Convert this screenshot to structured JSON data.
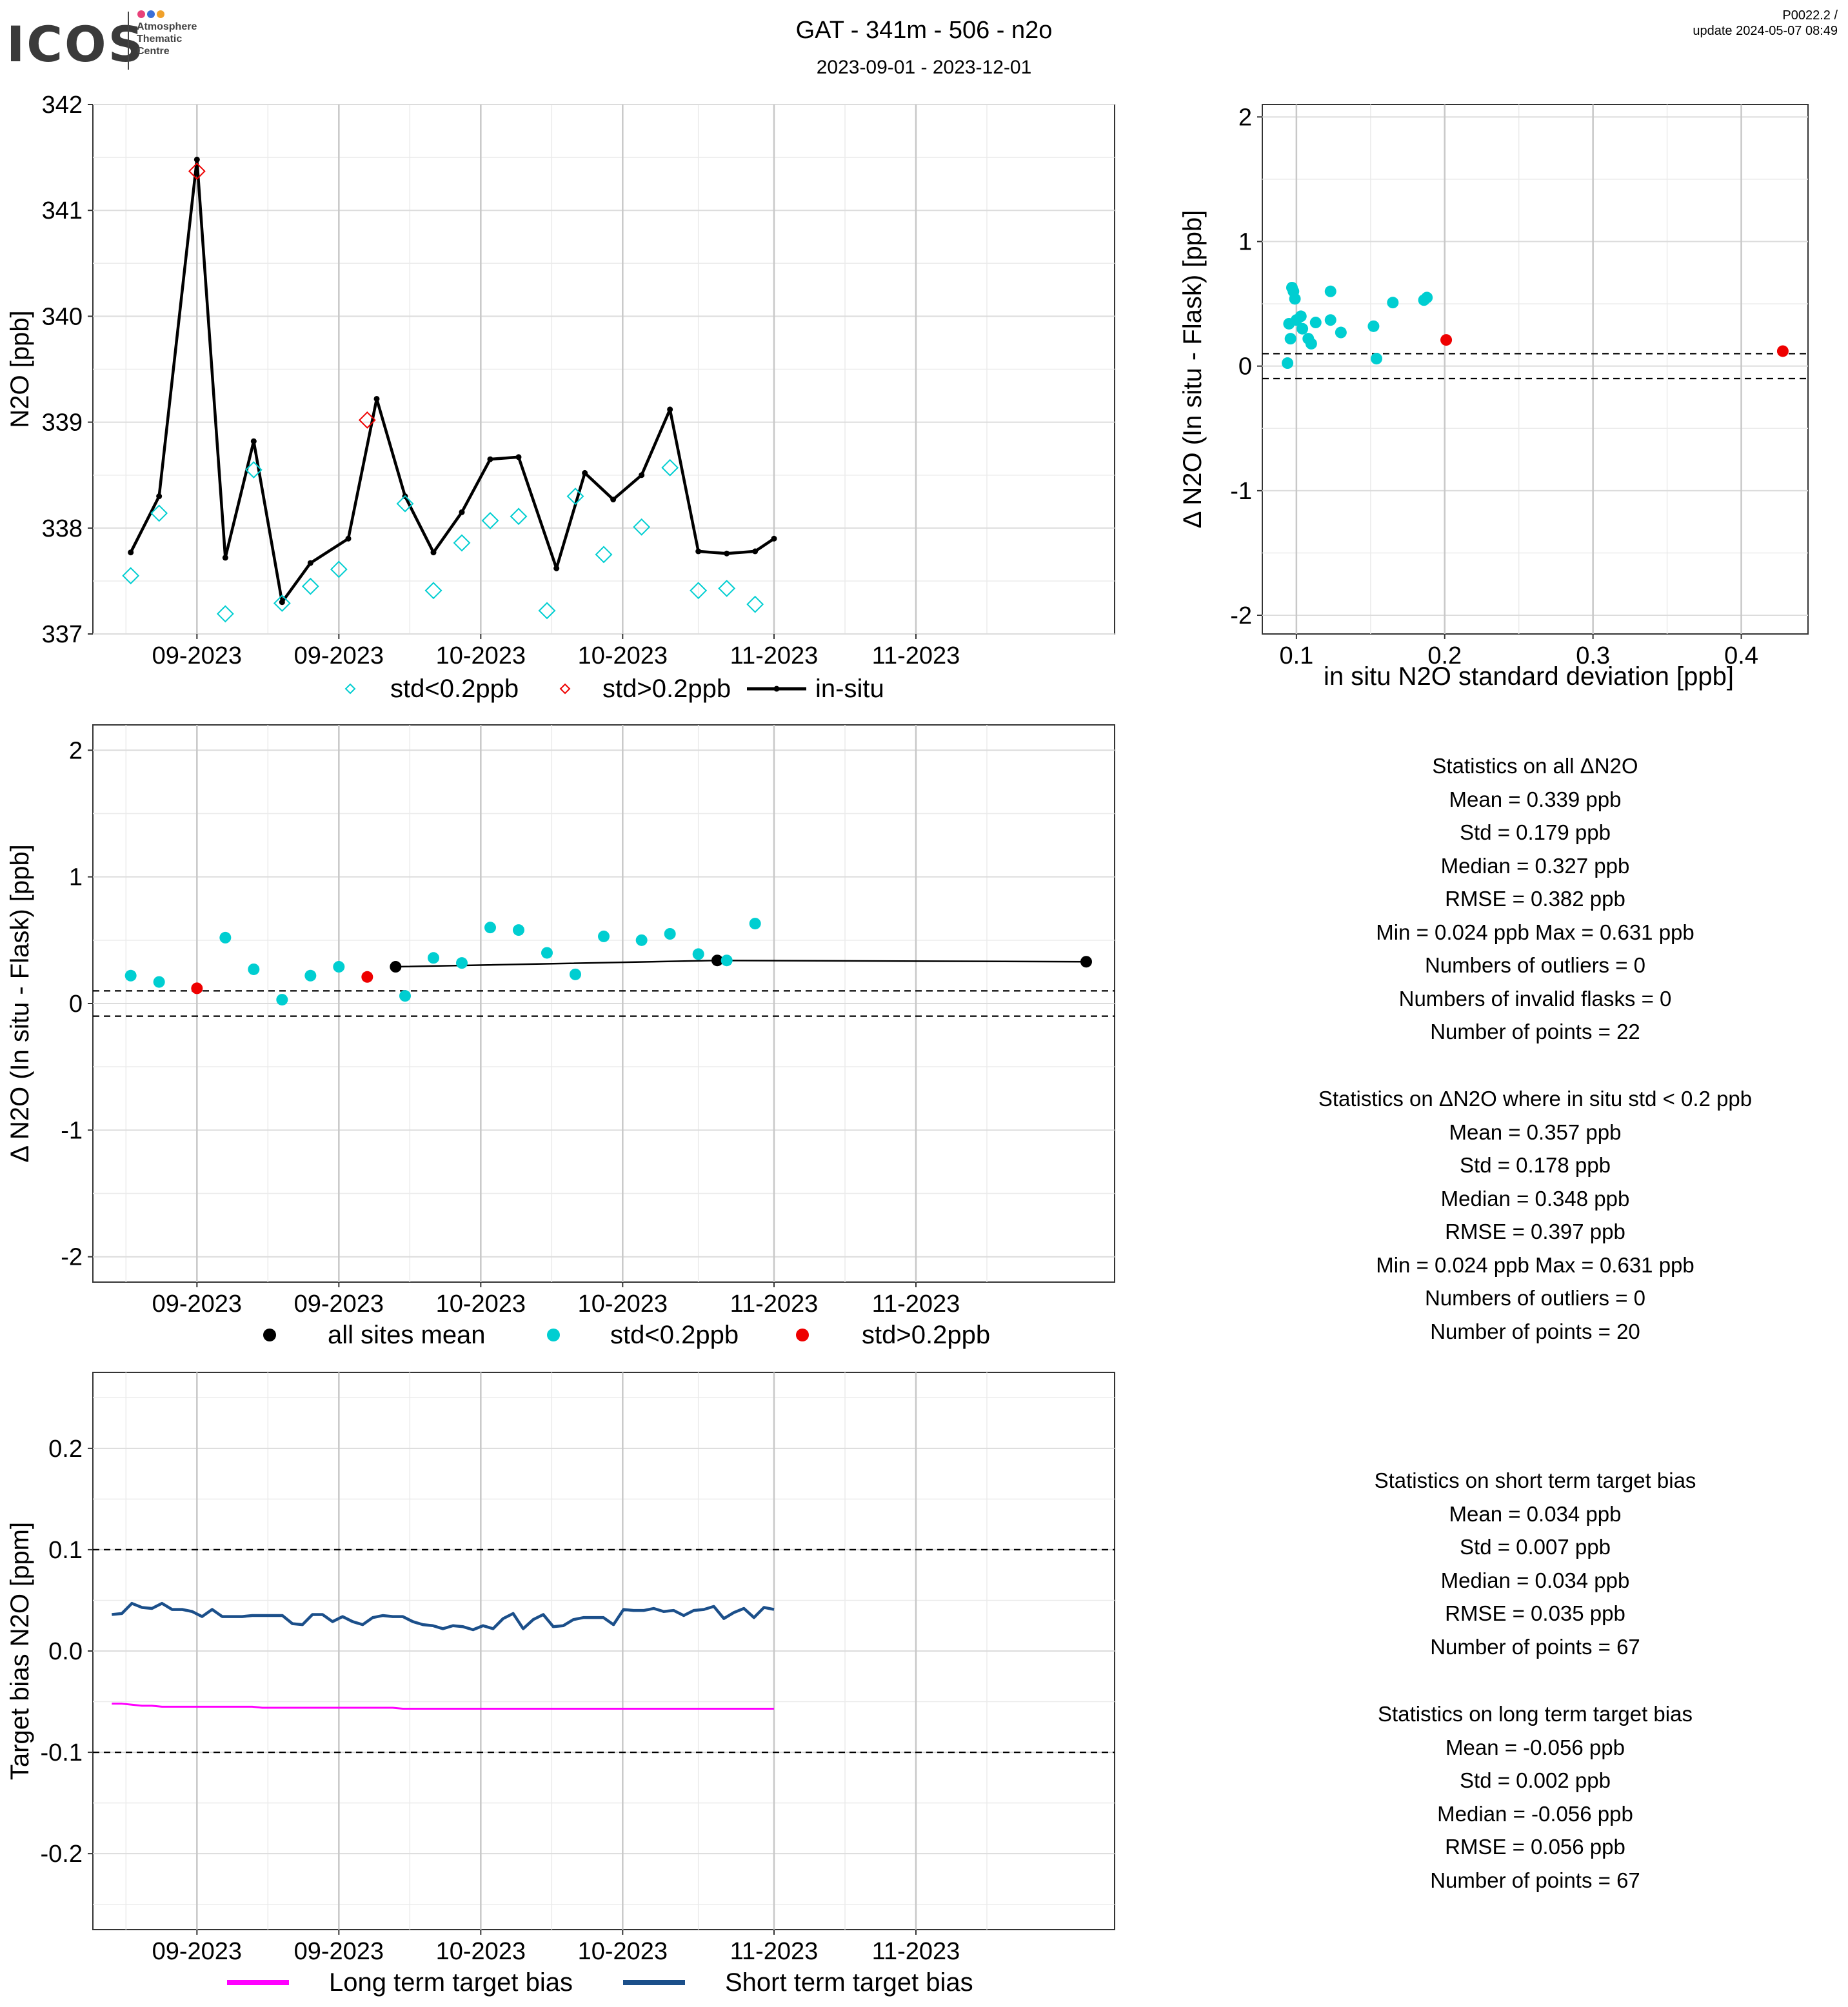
{
  "header": {
    "logo_text": "ICOS",
    "logo_sub": [
      "Atmosphere",
      "Thematic",
      "Centre"
    ],
    "logo_dot_colors": [
      "#e8417a",
      "#3a6fd8",
      "#f0a12b"
    ],
    "title": "GAT - 341m - 506 - n2o",
    "date_range": "2023-09-01 - 2023-12-01",
    "version": "P0022.2 /",
    "update": "update  2024-05-07 08:49"
  },
  "colors": {
    "cyan": "#00CED1",
    "red": "#EE0000",
    "magenta": "#FF00FF",
    "navy": "#1B4F8A",
    "black": "#000000"
  },
  "chart_data": [
    {
      "id": "timeseries",
      "type": "line",
      "ylabel": "N2O [ppb]",
      "ylim": [
        337,
        342
      ],
      "xlim": [
        "2023-08-21",
        "2023-12-07"
      ],
      "x_tick_dates": [
        "2023-09-01",
        "2023-09-16",
        "2023-10-01",
        "2023-10-16",
        "2023-11-01",
        "2023-11-16"
      ],
      "x_tick_labels": [
        "09-2023",
        "09-2023",
        "10-2023",
        "10-2023",
        "11-2023",
        "11-2023"
      ],
      "y_ticks": [
        337,
        338,
        339,
        340,
        341,
        342
      ],
      "legend": [
        {
          "label": "std<0.2ppb",
          "symbol": "diamond",
          "color": "#00CED1"
        },
        {
          "label": "std>0.2ppb",
          "symbol": "diamond",
          "color": "#EE0000"
        },
        {
          "label": "in-situ",
          "symbol": "line",
          "color": "#000000"
        }
      ],
      "series": [
        {
          "name": "in-situ",
          "x": [
            "2023-08-25",
            "2023-08-28",
            "2023-09-01",
            "2023-09-04",
            "2023-09-07",
            "2023-09-10",
            "2023-09-13",
            "2023-09-17",
            "2023-09-20",
            "2023-09-23",
            "2023-09-26",
            "2023-09-29",
            "2023-10-02",
            "2023-10-05",
            "2023-10-09",
            "2023-10-12",
            "2023-10-15",
            "2023-10-18",
            "2023-10-21",
            "2023-10-24",
            "2023-10-27",
            "2023-10-30",
            "2023-11-01"
          ],
          "values": [
            337.77,
            338.3,
            341.48,
            337.72,
            338.82,
            337.3,
            337.67,
            337.9,
            339.22,
            338.3,
            337.77,
            338.15,
            338.65,
            338.67,
            337.62,
            338.52,
            338.27,
            338.5,
            339.12,
            337.78,
            337.76,
            337.78,
            337.9
          ]
        },
        {
          "name": "std<0.2ppb",
          "x": [
            "2023-08-25",
            "2023-08-28",
            "2023-09-04",
            "2023-09-07",
            "2023-09-10",
            "2023-09-13",
            "2023-09-16",
            "2023-09-23",
            "2023-09-26",
            "2023-09-29",
            "2023-10-02",
            "2023-10-05",
            "2023-10-08",
            "2023-10-11",
            "2023-10-14",
            "2023-10-18",
            "2023-10-21",
            "2023-10-24",
            "2023-10-27",
            "2023-10-30"
          ],
          "values": [
            337.55,
            338.14,
            337.19,
            338.55,
            337.29,
            337.45,
            337.61,
            338.23,
            337.41,
            337.86,
            338.07,
            338.11,
            337.22,
            338.3,
            337.75,
            338.01,
            338.57,
            337.41,
            337.43,
            337.28
          ]
        },
        {
          "name": "std>0.2ppb",
          "x": [
            "2023-09-01",
            "2023-09-19"
          ],
          "values": [
            341.37,
            339.02
          ]
        }
      ]
    },
    {
      "id": "scatter_std",
      "type": "scatter",
      "xlabel": "in situ N2O standard deviation [ppb]",
      "ylabel": "Δ N2O (In situ - Flask) [ppb]",
      "xlim": [
        0.077,
        0.445
      ],
      "ylim": [
        -2.15,
        2.1
      ],
      "x_ticks": [
        0.1,
        0.2,
        0.3,
        0.4
      ],
      "y_ticks": [
        -2,
        -1,
        0,
        1,
        2
      ],
      "hlines": [
        0.1,
        -0.1
      ],
      "series": [
        {
          "name": "std<0.2ppb",
          "x": [
            0.094,
            0.095,
            0.096,
            0.097,
            0.098,
            0.099,
            0.1,
            0.103,
            0.104,
            0.108,
            0.11,
            0.113,
            0.123,
            0.123,
            0.13,
            0.152,
            0.154,
            0.165,
            0.186,
            0.188
          ],
          "y": [
            0.024,
            0.34,
            0.22,
            0.63,
            0.6,
            0.54,
            0.37,
            0.4,
            0.3,
            0.22,
            0.18,
            0.35,
            0.6,
            0.37,
            0.27,
            0.32,
            0.06,
            0.51,
            0.53,
            0.55
          ]
        },
        {
          "name": "std>0.2ppb",
          "x": [
            0.201,
            0.428
          ],
          "y": [
            0.21,
            0.12
          ]
        }
      ]
    },
    {
      "id": "delta_time",
      "type": "scatter",
      "ylabel": "Δ N2O (In situ - Flask) [ppb]",
      "ylim": [
        -2.2,
        2.2
      ],
      "xlim": [
        "2023-08-21",
        "2023-12-07"
      ],
      "x_tick_dates": [
        "2023-09-01",
        "2023-09-16",
        "2023-10-01",
        "2023-10-16",
        "2023-11-01",
        "2023-11-16"
      ],
      "x_tick_labels": [
        "09-2023",
        "09-2023",
        "10-2023",
        "10-2023",
        "11-2023",
        "11-2023"
      ],
      "y_ticks": [
        -2,
        -1,
        0,
        1,
        2
      ],
      "hlines": [
        0.1,
        -0.1
      ],
      "legend": [
        {
          "label": "all sites mean",
          "color": "#000000"
        },
        {
          "label": "std<0.2ppb",
          "color": "#00CED1"
        },
        {
          "label": "std>0.2ppb",
          "color": "#EE0000"
        }
      ],
      "series": [
        {
          "name": "all sites mean",
          "x": [
            "2023-09-22",
            "2023-10-26",
            "2023-12-04"
          ],
          "values": [
            0.29,
            0.34,
            0.33
          ]
        },
        {
          "name": "std<0.2ppb",
          "x": [
            "2023-08-25",
            "2023-08-28",
            "2023-09-04",
            "2023-09-07",
            "2023-09-10",
            "2023-09-13",
            "2023-09-16",
            "2023-09-23",
            "2023-09-26",
            "2023-09-29",
            "2023-10-02",
            "2023-10-05",
            "2023-10-08",
            "2023-10-11",
            "2023-10-14",
            "2023-10-18",
            "2023-10-21",
            "2023-10-24",
            "2023-10-27",
            "2023-10-30"
          ],
          "values": [
            0.22,
            0.17,
            0.52,
            0.27,
            0.03,
            0.22,
            0.29,
            0.06,
            0.36,
            0.32,
            0.6,
            0.58,
            0.4,
            0.23,
            0.53,
            0.5,
            0.55,
            0.39,
            0.34,
            0.631
          ]
        },
        {
          "name": "std>0.2ppb",
          "x": [
            "2023-09-01",
            "2023-09-19"
          ],
          "values": [
            0.12,
            0.21
          ]
        }
      ]
    },
    {
      "id": "target_bias",
      "type": "line",
      "ylabel": "Target bias N2O [ppm]",
      "ylim": [
        -0.275,
        0.275
      ],
      "xlim": [
        "2023-08-21",
        "2023-12-07"
      ],
      "x_tick_dates": [
        "2023-09-01",
        "2023-09-16",
        "2023-10-01",
        "2023-10-16",
        "2023-11-01",
        "2023-11-16"
      ],
      "x_tick_labels": [
        "09-2023",
        "09-2023",
        "10-2023",
        "10-2023",
        "11-2023",
        "11-2023"
      ],
      "y_ticks": [
        -0.2,
        -0.1,
        0.0,
        0.1,
        0.2
      ],
      "hlines": [
        0.1,
        -0.1
      ],
      "legend": [
        {
          "label": "Long term target bias",
          "color": "#FF00FF"
        },
        {
          "label": "Short term target bias",
          "color": "#1B4F8A"
        }
      ],
      "series": [
        {
          "name": "Short term target bias",
          "x_start": "2023-08-23",
          "x_end": "2023-11-01",
          "values": [
            0.036,
            0.037,
            0.047,
            0.043,
            0.042,
            0.047,
            0.041,
            0.041,
            0.039,
            0.034,
            0.041,
            0.034,
            0.034,
            0.034,
            0.035,
            0.035,
            0.035,
            0.035,
            0.027,
            0.026,
            0.036,
            0.036,
            0.029,
            0.034,
            0.029,
            0.026,
            0.033,
            0.035,
            0.034,
            0.034,
            0.029,
            0.026,
            0.025,
            0.022,
            0.025,
            0.024,
            0.021,
            0.025,
            0.022,
            0.032,
            0.037,
            0.022,
            0.031,
            0.036,
            0.024,
            0.025,
            0.031,
            0.033,
            0.033,
            0.033,
            0.026,
            0.041,
            0.04,
            0.04,
            0.042,
            0.039,
            0.04,
            0.035,
            0.04,
            0.041,
            0.044,
            0.032,
            0.038,
            0.042,
            0.033,
            0.043,
            0.041
          ]
        },
        {
          "name": "Long term target bias",
          "x_start": "2023-08-23",
          "x_end": "2023-11-01",
          "values": [
            -0.052,
            -0.052,
            -0.053,
            -0.054,
            -0.054,
            -0.055,
            -0.055,
            -0.055,
            -0.055,
            -0.055,
            -0.055,
            -0.055,
            -0.055,
            -0.055,
            -0.055,
            -0.056,
            -0.056,
            -0.056,
            -0.056,
            -0.056,
            -0.056,
            -0.056,
            -0.056,
            -0.056,
            -0.056,
            -0.056,
            -0.056,
            -0.056,
            -0.056,
            -0.057,
            -0.057,
            -0.057,
            -0.057,
            -0.057,
            -0.057,
            -0.057,
            -0.057,
            -0.057,
            -0.057,
            -0.057,
            -0.057,
            -0.057,
            -0.057,
            -0.057,
            -0.057,
            -0.057,
            -0.057,
            -0.057,
            -0.057,
            -0.057,
            -0.057,
            -0.057,
            -0.057,
            -0.057,
            -0.057,
            -0.057,
            -0.057,
            -0.057,
            -0.057,
            -0.057,
            -0.057,
            -0.057,
            -0.057,
            -0.057,
            -0.057,
            -0.057,
            -0.057
          ]
        }
      ]
    }
  ],
  "stats_all": {
    "title": "Statistics on all ΔN2O",
    "mean": "Mean =  0.339 ppb",
    "std": "Std =  0.179 ppb",
    "median": "Median =  0.327 ppb",
    "rmse": "RMSE =  0.382 ppb",
    "minmax": "Min =  0.024 ppb Max =  0.631 ppb",
    "outliers": "Numbers of outliers =  0",
    "invalid": "Numbers of invalid flasks =  0",
    "points": "Number of points =  22"
  },
  "stats_lowstd": {
    "title": "Statistics on ΔN2O where in situ std < 0.2 ppb",
    "mean": "Mean =  0.357 ppb",
    "std": "Std =  0.178 ppb",
    "median": "Median =  0.348 ppb",
    "rmse": "RMSE =  0.397 ppb",
    "minmax": "Min =  0.024 ppb Max =  0.631 ppb",
    "outliers": "Numbers of outliers =  0",
    "points": "Number of points =  20"
  },
  "stats_short": {
    "title": "Statistics on short term target bias",
    "mean": "Mean =  0.034 ppb",
    "std": "Std =  0.007 ppb",
    "median": "Median =  0.034 ppb",
    "rmse": "RMSE =  0.035 ppb",
    "points": "Number of points =  67"
  },
  "stats_long": {
    "title": "Statistics on long term target bias",
    "mean": "Mean =  -0.056 ppb",
    "std": "Std =  0.002 ppb",
    "median": "Median =  -0.056 ppb",
    "rmse": "RMSE =  0.056 ppb",
    "points": "Number of points =  67"
  }
}
